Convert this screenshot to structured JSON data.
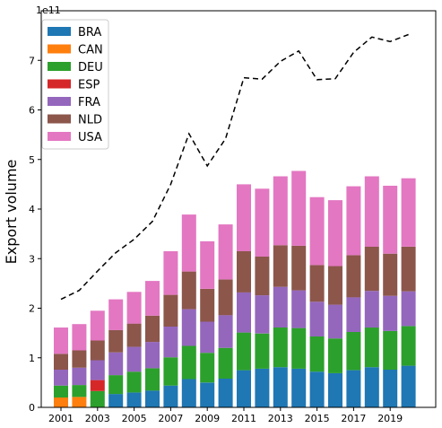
{
  "chart_data": {
    "type": "bar",
    "stacked": true,
    "title": "",
    "xlabel": "",
    "ylabel": "Export volume",
    "y_offset_label": "1e11",
    "y_scale": 100000000000.0,
    "ylim": [
      0,
      8.0
    ],
    "yticks": [
      "0",
      "1",
      "2",
      "3",
      "4",
      "5",
      "6",
      "7"
    ],
    "categories": [
      2001,
      2002,
      2003,
      2004,
      2005,
      2006,
      2007,
      2008,
      2009,
      2010,
      2011,
      2012,
      2013,
      2014,
      2015,
      2016,
      2017,
      2018,
      2019,
      2020
    ],
    "xticks": [
      "2001",
      "2003",
      "2005",
      "2007",
      "2009",
      "2011",
      "2013",
      "2015",
      "2017",
      "2019"
    ],
    "legend_position": "top-left",
    "grid": false,
    "series": [
      {
        "name": "BRA",
        "color": "#1f77b4",
        "values": [
          0,
          0,
          0,
          0.27,
          0.3,
          0.34,
          0.44,
          0.57,
          0.5,
          0.58,
          0.75,
          0.78,
          0.81,
          0.78,
          0.72,
          0.69,
          0.75,
          0.81,
          0.76,
          0.84
        ]
      },
      {
        "name": "CAN",
        "color": "#ff7f0e",
        "values": [
          0.2,
          0.21,
          0,
          0,
          0,
          0,
          0,
          0,
          0,
          0,
          0,
          0,
          0,
          0,
          0,
          0,
          0,
          0,
          0,
          0
        ]
      },
      {
        "name": "DEU",
        "color": "#2ca02c",
        "values": [
          0.24,
          0.24,
          0.33,
          0.38,
          0.42,
          0.45,
          0.57,
          0.67,
          0.6,
          0.62,
          0.76,
          0.71,
          0.8,
          0.82,
          0.71,
          0.7,
          0.77,
          0.8,
          0.78,
          0.8
        ]
      },
      {
        "name": "ESP",
        "color": "#d62728",
        "values": [
          0,
          0,
          0.22,
          0,
          0,
          0,
          0,
          0,
          0,
          0,
          0,
          0,
          0,
          0,
          0,
          0,
          0,
          0,
          0,
          0
        ]
      },
      {
        "name": "FRA",
        "color": "#9467bd",
        "values": [
          0.32,
          0.35,
          0.4,
          0.46,
          0.5,
          0.53,
          0.62,
          0.74,
          0.63,
          0.66,
          0.81,
          0.77,
          0.82,
          0.76,
          0.7,
          0.68,
          0.7,
          0.74,
          0.71,
          0.7
        ]
      },
      {
        "name": "NLD",
        "color": "#8c564b",
        "values": [
          0.32,
          0.35,
          0.4,
          0.45,
          0.47,
          0.53,
          0.64,
          0.76,
          0.66,
          0.72,
          0.83,
          0.78,
          0.84,
          0.9,
          0.74,
          0.78,
          0.85,
          0.89,
          0.85,
          0.9
        ]
      },
      {
        "name": "USA",
        "color": "#e377c2",
        "values": [
          0.53,
          0.53,
          0.6,
          0.62,
          0.64,
          0.7,
          0.88,
          1.15,
          0.96,
          1.11,
          1.35,
          1.37,
          1.39,
          1.51,
          1.37,
          1.33,
          1.39,
          1.42,
          1.37,
          1.38
        ]
      }
    ],
    "total_line": {
      "style": "dashed",
      "color": "#000000",
      "values": [
        2.18,
        2.36,
        2.75,
        3.12,
        3.39,
        3.75,
        4.5,
        5.52,
        4.87,
        5.42,
        6.65,
        6.62,
        6.98,
        7.19,
        6.61,
        6.63,
        7.16,
        7.47,
        7.38,
        7.52
      ]
    }
  }
}
